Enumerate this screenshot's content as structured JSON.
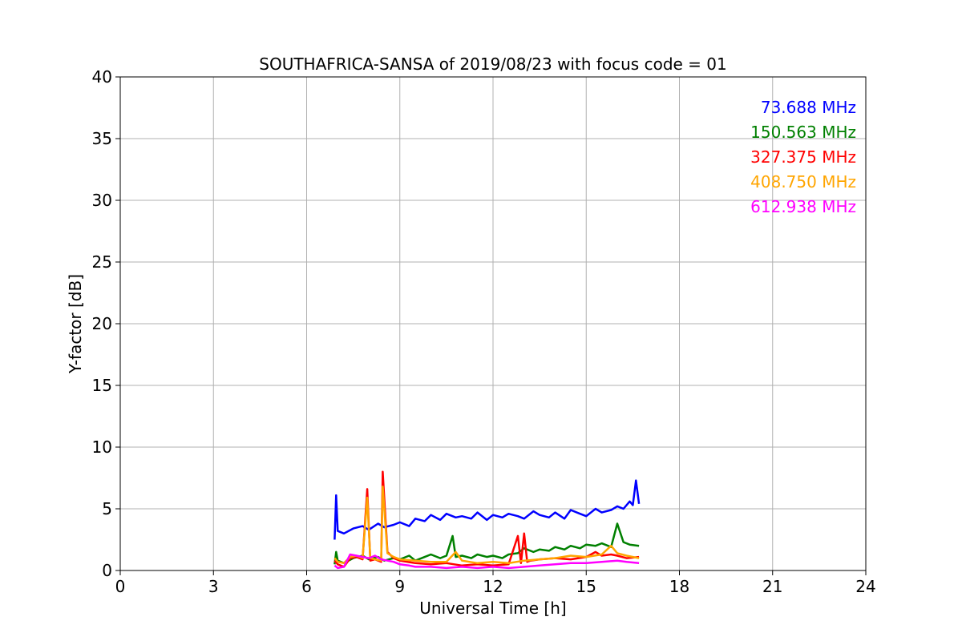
{
  "chart_data": {
    "type": "line",
    "title": "SOUTHAFRICA-SANSA of 2019/08/23 with focus code = 01",
    "xlabel": "Universal Time [h]",
    "ylabel": "Y-factor [dB]",
    "xlim": [
      0,
      24
    ],
    "ylim": [
      0,
      40
    ],
    "xticks": [
      0,
      3,
      6,
      9,
      12,
      15,
      18,
      21,
      24
    ],
    "yticks": [
      0,
      5,
      10,
      15,
      20,
      25,
      30,
      35,
      40
    ],
    "grid": true,
    "legend_position": "top-right",
    "series": [
      {
        "name": "73.688 MHz",
        "color": "#0000ff",
        "x": [
          6.9,
          6.95,
          7.0,
          7.2,
          7.5,
          7.8,
          8.0,
          8.3,
          8.5,
          8.8,
          9.0,
          9.3,
          9.5,
          9.8,
          10.0,
          10.3,
          10.5,
          10.8,
          11.0,
          11.3,
          11.5,
          11.8,
          12.0,
          12.3,
          12.5,
          12.8,
          13.0,
          13.3,
          13.5,
          13.8,
          14.0,
          14.3,
          14.5,
          14.8,
          15.0,
          15.3,
          15.5,
          15.8,
          16.0,
          16.2,
          16.4,
          16.5,
          16.6,
          16.7
        ],
        "y": [
          2.5,
          6.1,
          3.2,
          3.0,
          3.4,
          3.6,
          3.3,
          3.8,
          3.5,
          3.7,
          3.9,
          3.6,
          4.2,
          4.0,
          4.5,
          4.1,
          4.6,
          4.3,
          4.4,
          4.2,
          4.7,
          4.1,
          4.5,
          4.3,
          4.6,
          4.4,
          4.2,
          4.8,
          4.5,
          4.3,
          4.7,
          4.2,
          4.9,
          4.6,
          4.4,
          5.0,
          4.7,
          4.9,
          5.2,
          5.0,
          5.6,
          5.3,
          7.3,
          5.4
        ]
      },
      {
        "name": "150.563 MHz",
        "color": "#008000",
        "x": [
          6.9,
          6.95,
          7.0,
          7.2,
          7.5,
          7.8,
          8.0,
          8.3,
          8.5,
          8.8,
          9.0,
          9.3,
          9.5,
          9.8,
          10.0,
          10.3,
          10.5,
          10.7,
          10.8,
          11.0,
          11.3,
          11.5,
          11.8,
          12.0,
          12.3,
          12.5,
          12.8,
          13.0,
          13.3,
          13.5,
          13.8,
          14.0,
          14.3,
          14.5,
          14.8,
          15.0,
          15.3,
          15.5,
          15.8,
          16.0,
          16.2,
          16.4,
          16.7
        ],
        "y": [
          0.5,
          1.5,
          0.8,
          0.6,
          1.0,
          1.2,
          0.9,
          1.1,
          0.8,
          1.0,
          0.9,
          1.2,
          0.8,
          1.1,
          1.3,
          1.0,
          1.2,
          2.8,
          1.1,
          1.2,
          1.0,
          1.3,
          1.1,
          1.2,
          1.0,
          1.3,
          1.4,
          1.8,
          1.5,
          1.7,
          1.6,
          1.9,
          1.7,
          2.0,
          1.8,
          2.1,
          2.0,
          2.2,
          1.9,
          3.8,
          2.3,
          2.1,
          2.0
        ]
      },
      {
        "name": "327.375 MHz",
        "color": "#ff0000",
        "x": [
          6.9,
          7.0,
          7.2,
          7.4,
          7.6,
          7.8,
          7.95,
          8.05,
          8.2,
          8.4,
          8.45,
          8.6,
          8.8,
          9.0,
          9.5,
          10.0,
          10.5,
          11.0,
          11.5,
          12.0,
          12.5,
          12.8,
          12.9,
          13.0,
          13.1,
          13.2,
          13.5,
          14.0,
          14.5,
          15.0,
          15.3,
          15.5,
          15.8,
          16.0,
          16.3,
          16.7
        ],
        "y": [
          0.8,
          0.5,
          0.3,
          1.0,
          1.1,
          0.9,
          6.6,
          0.8,
          0.9,
          0.7,
          8.0,
          1.5,
          1.0,
          0.8,
          0.6,
          0.5,
          0.6,
          0.4,
          0.5,
          0.4,
          0.5,
          2.8,
          0.6,
          3.0,
          0.7,
          0.8,
          0.9,
          1.0,
          0.9,
          1.1,
          1.5,
          1.2,
          1.3,
          1.2,
          1.0,
          1.1
        ]
      },
      {
        "name": "408.750 MHz",
        "color": "#ffa500",
        "x": [
          6.9,
          7.0,
          7.2,
          7.4,
          7.6,
          7.8,
          7.95,
          8.05,
          8.2,
          8.4,
          8.45,
          8.6,
          8.8,
          9.0,
          9.5,
          10.0,
          10.5,
          10.8,
          11.0,
          11.5,
          12.0,
          12.5,
          13.0,
          13.5,
          14.0,
          14.5,
          15.0,
          15.5,
          15.8,
          16.0,
          16.3,
          16.7
        ],
        "y": [
          1.0,
          0.7,
          0.6,
          1.1,
          1.2,
          1.0,
          5.9,
          1.0,
          0.9,
          0.8,
          6.8,
          1.4,
          1.1,
          0.9,
          0.8,
          0.7,
          0.7,
          1.5,
          0.8,
          0.6,
          0.7,
          0.6,
          0.8,
          0.9,
          1.0,
          1.2,
          1.1,
          1.3,
          2.0,
          1.4,
          1.2,
          1.0
        ]
      },
      {
        "name": "612.938 MHz",
        "color": "#ff00ff",
        "x": [
          6.9,
          7.0,
          7.2,
          7.4,
          7.6,
          7.8,
          8.0,
          8.2,
          8.4,
          8.6,
          8.8,
          9.0,
          9.3,
          9.5,
          10.0,
          10.5,
          11.0,
          11.5,
          12.0,
          12.5,
          13.0,
          13.5,
          14.0,
          14.5,
          15.0,
          15.5,
          16.0,
          16.3,
          16.7
        ],
        "y": [
          0.4,
          0.2,
          0.3,
          1.3,
          1.2,
          1.1,
          1.0,
          1.2,
          0.9,
          0.8,
          0.7,
          0.5,
          0.4,
          0.3,
          0.3,
          0.2,
          0.3,
          0.2,
          0.3,
          0.2,
          0.3,
          0.4,
          0.5,
          0.6,
          0.6,
          0.7,
          0.8,
          0.7,
          0.6
        ]
      }
    ]
  }
}
